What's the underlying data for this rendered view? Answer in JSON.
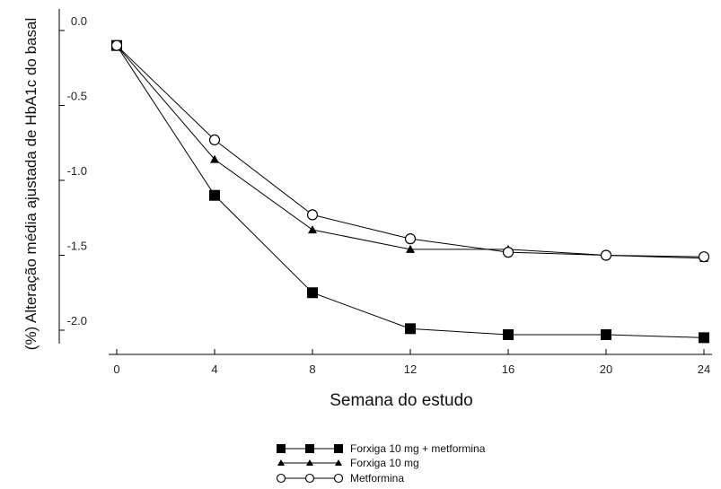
{
  "chart_data": {
    "type": "line",
    "xlabel": "Semana do estudo",
    "ylabel": "(%) Alteração média ajustada de HbA1c do basal",
    "x_ticks": [
      0,
      4,
      8,
      12,
      16,
      20,
      24
    ],
    "y_ticks": [
      "0.0",
      "-0.5",
      "-1.0",
      "-1.5",
      "-2.0"
    ],
    "xlim": [
      -1,
      24.6
    ],
    "ylim": [
      -2.25,
      0.05
    ],
    "grid": false,
    "legend_position": "bottom-center",
    "x": [
      0,
      4,
      8,
      12,
      16,
      20,
      24
    ],
    "series": [
      {
        "name": "Forxiga 10 mg + metformina",
        "marker": "square",
        "color": "#000000",
        "values": [
          -0.1,
          -1.1,
          -1.75,
          -1.99,
          -2.03,
          -2.03,
          -2.05
        ]
      },
      {
        "name": "Forxiga 10 mg",
        "marker": "triangle",
        "color": "#000000",
        "values": [
          -0.1,
          -0.86,
          -1.33,
          -1.46,
          -1.46,
          -1.5,
          -1.52
        ]
      },
      {
        "name": "Metformina",
        "marker": "circle-open",
        "color": "#000000",
        "values": [
          -0.1,
          -0.73,
          -1.23,
          -1.39,
          -1.48,
          -1.5,
          -1.51
        ]
      }
    ]
  }
}
